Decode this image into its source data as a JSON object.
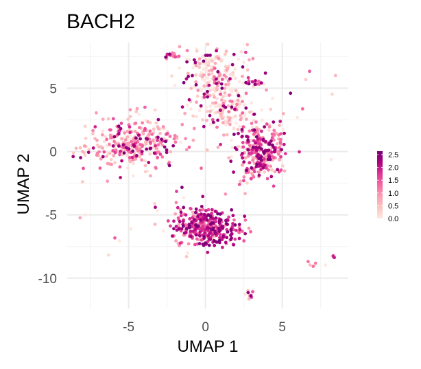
{
  "chart_data": {
    "type": "scatter",
    "title": "BACH2",
    "xlabel": "UMAP 1",
    "ylabel": "UMAP 2",
    "xlim": [
      -9,
      9.3
    ],
    "ylim": [
      -12.4,
      8.6
    ],
    "x_ticks": [
      -5,
      0,
      5
    ],
    "y_ticks": [
      5,
      0,
      -5,
      -10
    ],
    "x_tick_labels": [
      "-5",
      "0",
      "5"
    ],
    "y_tick_labels": [
      "5",
      "0",
      "-5",
      "-10"
    ],
    "grid": true,
    "background": "#ffffff",
    "color_scale": {
      "min": 0,
      "max": 2.5,
      "ticks": [
        2.5,
        2.0,
        1.5,
        1.0,
        0.5,
        0.0
      ],
      "tick_labels": [
        "2.5",
        "2.0",
        "1.5",
        "1.0",
        "0.5",
        "0.0"
      ],
      "colors": [
        "#fde8e2",
        "#fcc5c0",
        "#fa9fb5",
        "#f768a1",
        "#dd3497",
        "#ae017e",
        "#7a0177"
      ],
      "legend_position": "right"
    },
    "clusters": [
      {
        "cx": -4.8,
        "cy": 0.5,
        "sx": 1.5,
        "sy": 1.0,
        "n": 330,
        "mean": 0.7
      },
      {
        "cx": 0.5,
        "cy": 6.0,
        "sx": 1.1,
        "sy": 1.2,
        "n": 190,
        "mean": 0.3
      },
      {
        "cx": -2.2,
        "cy": 7.6,
        "sx": 0.3,
        "sy": 0.12,
        "n": 18,
        "mean": 0.9
      },
      {
        "cx": 1.2,
        "cy": 3.2,
        "sx": 0.9,
        "sy": 0.8,
        "n": 110,
        "mean": 0.35
      },
      {
        "cx": 3.6,
        "cy": -0.1,
        "sx": 0.8,
        "sy": 1.1,
        "n": 300,
        "mean": 1.1
      },
      {
        "cx": 0.1,
        "cy": -6.0,
        "sx": 1.0,
        "sy": 0.8,
        "n": 340,
        "mean": 1.6
      },
      {
        "cx": 3.1,
        "cy": 5.4,
        "sx": 0.35,
        "sy": 0.25,
        "n": 14,
        "mean": 1.8
      },
      {
        "cx": 2.9,
        "cy": -11.3,
        "sx": 0.2,
        "sy": 0.15,
        "n": 10,
        "mean": 0.9
      },
      {
        "cx": 7.2,
        "cy": -8.9,
        "sx": 0.3,
        "sy": 0.15,
        "n": 6,
        "mean": 0.9
      },
      {
        "cx": 8.4,
        "cy": -8.3,
        "sx": 0.1,
        "sy": 0.1,
        "n": 4,
        "mean": 1.5
      },
      {
        "cx": -3.0,
        "cy": -5.4,
        "sx": 2.0,
        "sy": 1.5,
        "n": 25,
        "mean": 0.4
      },
      {
        "cx": 3.5,
        "cy": 3.0,
        "sx": 2.5,
        "sy": 2.5,
        "n": 35,
        "mean": 0.6
      }
    ]
  }
}
